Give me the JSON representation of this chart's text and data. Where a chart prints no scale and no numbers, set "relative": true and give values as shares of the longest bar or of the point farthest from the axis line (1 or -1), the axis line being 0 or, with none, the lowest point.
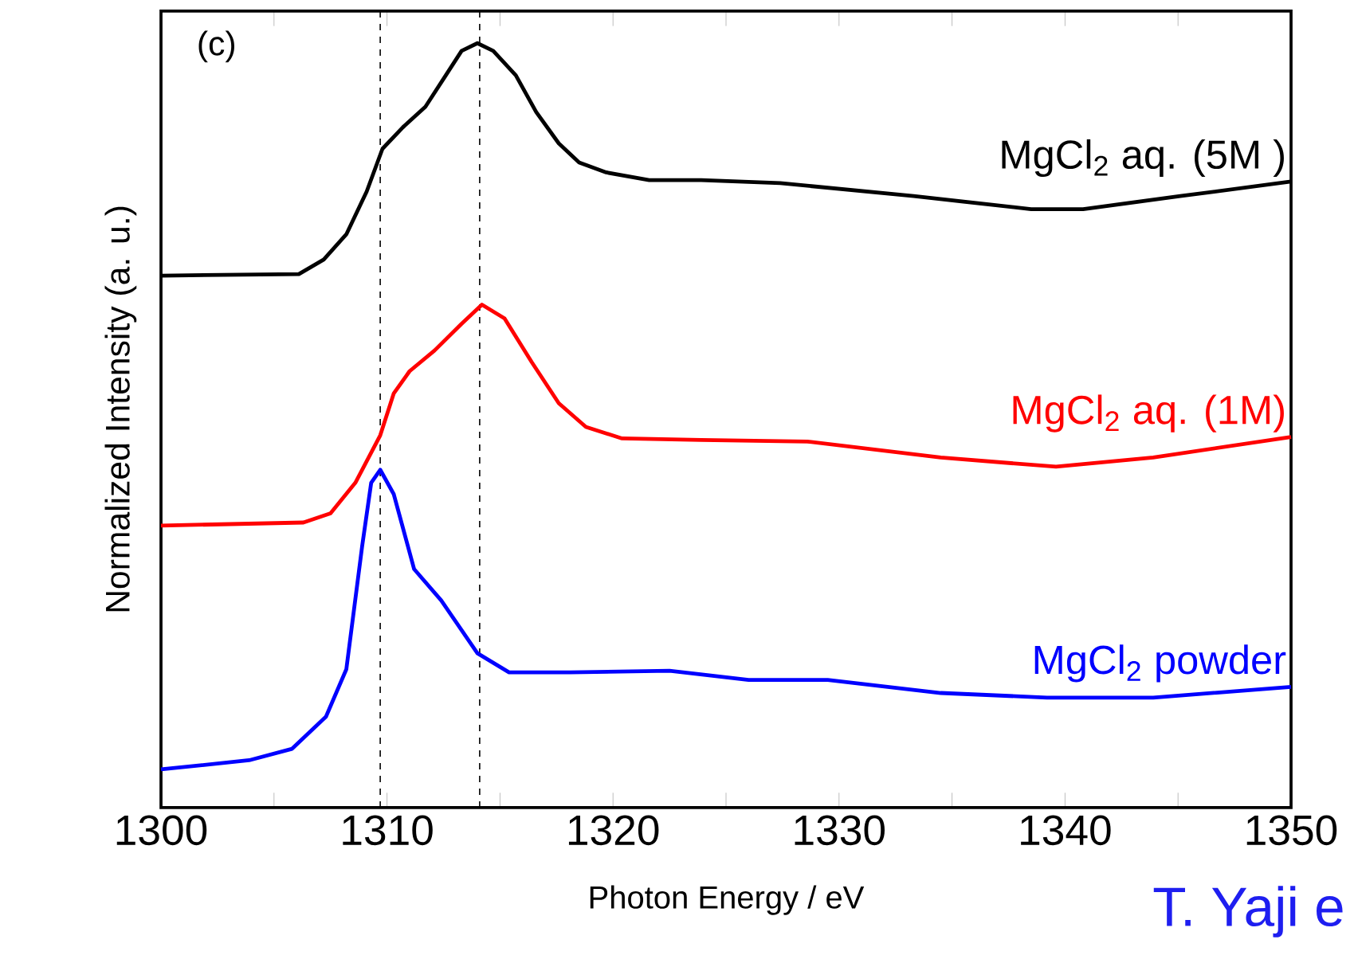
{
  "chart_data": {
    "type": "line",
    "xlabel": "Photon Energy / eV",
    "ylabel": "Normalized Intensity (a. u.)",
    "relative": true,
    "xlim": [
      1300,
      1350
    ],
    "xticks": [
      1300,
      {
        "value": 1305,
        "label": null
      },
      1310,
      {
        "value": 1315,
        "label": null
      },
      1320,
      {
        "value": 1325,
        "label": null
      },
      1330,
      {
        "value": 1335,
        "label": null
      },
      1340,
      {
        "value": 1345,
        "label": null
      },
      1350
    ],
    "grid": false,
    "legend": false,
    "marker": "none",
    "line_style": "solid",
    "ref_lines": [
      {
        "axis": "x",
        "value": 1309.7,
        "color": "#000000",
        "line_style": "dashed"
      },
      {
        "axis": "x",
        "value": 1314.1,
        "color": "#000000",
        "line_style": "dashed"
      }
    ],
    "annotations": [
      "(c)",
      "T. Yaji e"
    ],
    "series": [
      {
        "name": "MgCl$_{2}$ aq. (5M )",
        "color": "#000000",
        "x": [
          1300,
          1306.1,
          1307.2,
          1308.2,
          1309.1,
          1309.8,
          1310.7,
          1311.7,
          1312.6,
          1313.3,
          1314.0,
          1314.7,
          1315.7,
          1316.6,
          1317.6,
          1318.5,
          1319.7,
          1321.6,
          1323.9,
          1327.4,
          1333.3,
          1338.5,
          1340.8,
          1345.1,
          1350
        ],
        "values": [
          0.696,
          0.698,
          0.717,
          0.75,
          0.806,
          0.862,
          0.89,
          0.917,
          0.958,
          0.99,
          1.0,
          0.99,
          0.958,
          0.91,
          0.869,
          0.844,
          0.831,
          0.821,
          0.821,
          0.817,
          0.8,
          0.783,
          0.783,
          0.8,
          0.819
        ]
      },
      {
        "name": "MgCl$_{2}$ aq. (1M)",
        "color": "#ff0000",
        "x": [
          1300,
          1306.3,
          1307.5,
          1308.6,
          1309.7,
          1310.3,
          1311.0,
          1312.1,
          1313.3,
          1314.2,
          1315.2,
          1316.4,
          1317.6,
          1318.8,
          1320.4,
          1323.9,
          1328.6,
          1334.5,
          1339.6,
          1343.9,
          1350
        ],
        "values": [
          0.369,
          0.373,
          0.385,
          0.425,
          0.487,
          0.542,
          0.571,
          0.598,
          0.633,
          0.658,
          0.64,
          0.583,
          0.529,
          0.498,
          0.483,
          0.481,
          0.479,
          0.458,
          0.446,
          0.458,
          0.485
        ]
      },
      {
        "name": "MgCl$_{2}$ powder",
        "color": "#0000ff",
        "x": [
          1300,
          1303.9,
          1305.8,
          1307.3,
          1308.2,
          1308.9,
          1309.3,
          1309.7,
          1310.3,
          1311.2,
          1312.4,
          1314.0,
          1315.4,
          1318.1,
          1322.5,
          1326.0,
          1329.5,
          1334.5,
          1339.2,
          1343.9,
          1350
        ],
        "values": [
          0.05,
          0.062,
          0.077,
          0.119,
          0.181,
          0.342,
          0.425,
          0.442,
          0.41,
          0.312,
          0.271,
          0.202,
          0.177,
          0.177,
          0.179,
          0.167,
          0.167,
          0.15,
          0.144,
          0.144,
          0.158
        ]
      }
    ]
  }
}
